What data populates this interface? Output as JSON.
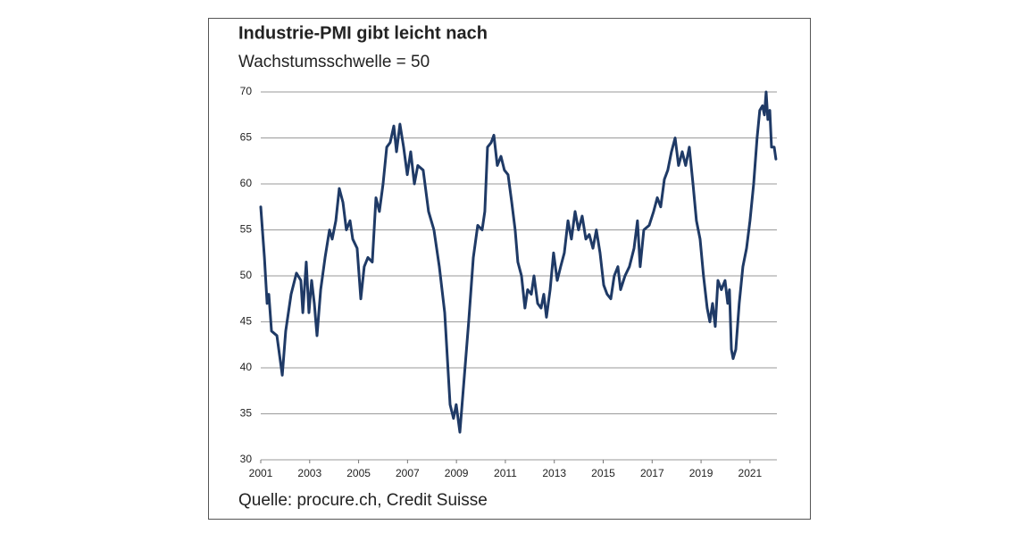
{
  "chart_data": {
    "type": "line",
    "title": "Industrie-PMI gibt leicht nach",
    "subtitle": "Wachstumsschwelle = 50",
    "source": "Quelle: procure.ch, Credit Suisse",
    "color": "#1f3a66",
    "grid": true,
    "xlim": [
      2001,
      2022.1
    ],
    "xticks": [
      2001,
      2003,
      2005,
      2007,
      2009,
      2011,
      2013,
      2015,
      2017,
      2019,
      2021
    ],
    "ylim": [
      30,
      70
    ],
    "yticks": [
      30,
      35,
      40,
      45,
      50,
      55,
      60,
      65,
      70
    ],
    "x": [
      2001.0,
      2001.15,
      2001.26,
      2001.33,
      2001.44,
      2001.66,
      2001.88,
      2002.02,
      2002.24,
      2002.46,
      2002.64,
      2002.72,
      2002.86,
      2002.97,
      2003.08,
      2003.19,
      2003.3,
      2003.45,
      2003.63,
      2003.81,
      2003.92,
      2004.07,
      2004.21,
      2004.36,
      2004.5,
      2004.65,
      2004.76,
      2004.94,
      2005.09,
      2005.23,
      2005.38,
      2005.56,
      2005.71,
      2005.85,
      2006.0,
      2006.15,
      2006.29,
      2006.44,
      2006.55,
      2006.69,
      2006.84,
      2006.99,
      2007.13,
      2007.28,
      2007.42,
      2007.64,
      2007.86,
      2008.08,
      2008.3,
      2008.52,
      2008.74,
      2008.88,
      2008.99,
      2009.14,
      2009.32,
      2009.5,
      2009.69,
      2009.87,
      2010.05,
      2010.16,
      2010.27,
      2010.42,
      2010.53,
      2010.67,
      2010.82,
      2010.96,
      2011.11,
      2011.26,
      2011.4,
      2011.51,
      2011.66,
      2011.8,
      2011.91,
      2012.06,
      2012.17,
      2012.32,
      2012.46,
      2012.57,
      2012.68,
      2012.83,
      2012.97,
      2013.12,
      2013.26,
      2013.41,
      2013.56,
      2013.7,
      2013.85,
      2013.99,
      2014.14,
      2014.29,
      2014.43,
      2014.58,
      2014.72,
      2014.87,
      2015.02,
      2015.16,
      2015.31,
      2015.45,
      2015.6,
      2015.71,
      2015.89,
      2016.07,
      2016.26,
      2016.4,
      2016.51,
      2016.66,
      2016.88,
      2017.06,
      2017.21,
      2017.35,
      2017.5,
      2017.64,
      2017.79,
      2017.94,
      2018.08,
      2018.23,
      2018.37,
      2018.52,
      2018.67,
      2018.81,
      2018.96,
      2019.1,
      2019.25,
      2019.36,
      2019.47,
      2019.58,
      2019.69,
      2019.83,
      2019.98,
      2020.09,
      2020.16,
      2020.24,
      2020.31,
      2020.42,
      2020.56,
      2020.71,
      2020.86,
      2021.0,
      2021.15,
      2021.29,
      2021.4,
      2021.51,
      2021.59,
      2021.66,
      2021.73,
      2021.81,
      2021.88,
      2021.99,
      2022.06
    ],
    "values": [
      57.5,
      52,
      47,
      48,
      44,
      43.5,
      39.2,
      44,
      48,
      50.3,
      49.5,
      46,
      51.5,
      46,
      49.5,
      47,
      43.5,
      48.5,
      52,
      55,
      54,
      56,
      59.5,
      58,
      55,
      56,
      54,
      53,
      47.5,
      51,
      52,
      51.5,
      58.5,
      57,
      60,
      64,
      64.5,
      66.3,
      63.5,
      66.5,
      64,
      61,
      63.5,
      60,
      62,
      61.5,
      57,
      55,
      51,
      46,
      36,
      34.5,
      36,
      33,
      39,
      45,
      52,
      55.5,
      55,
      57,
      64,
      64.5,
      65.3,
      62,
      63,
      61.5,
      61,
      58,
      55,
      51.5,
      50,
      46.5,
      48.5,
      48,
      50,
      47,
      46.5,
      48,
      45.5,
      48.5,
      52.5,
      49.5,
      51,
      52.5,
      56,
      54,
      57,
      55,
      56.5,
      54,
      54.5,
      53,
      55,
      52.5,
      49,
      48,
      47.5,
      50,
      51,
      48.5,
      50,
      51,
      53,
      56,
      51,
      55,
      55.5,
      57,
      58.5,
      57.5,
      60.5,
      61.5,
      63.5,
      65,
      62,
      63.5,
      62,
      64,
      60,
      56,
      54,
      50,
      46.5,
      45,
      47,
      44.5,
      49.5,
      48.5,
      49.5,
      47,
      48.5,
      42,
      41,
      42,
      47,
      51,
      53,
      56,
      60,
      65,
      68,
      68.5,
      67.5,
      70,
      67,
      68,
      64,
      64,
      62.7
    ]
  }
}
